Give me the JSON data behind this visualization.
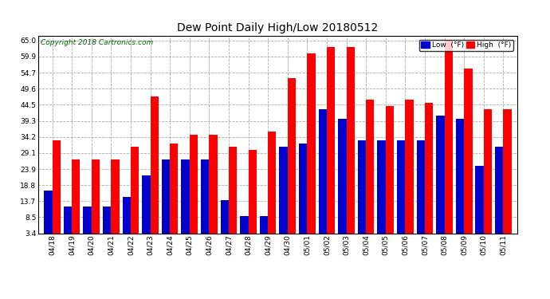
{
  "title": "Dew Point Daily High/Low 20180512",
  "copyright": "Copyright 2018 Cartronics.com",
  "yticks": [
    3.4,
    8.5,
    13.7,
    18.8,
    23.9,
    29.1,
    34.2,
    39.3,
    44.5,
    49.6,
    54.7,
    59.9,
    65.0
  ],
  "dates": [
    "04/18",
    "04/19",
    "04/20",
    "04/21",
    "04/22",
    "04/23",
    "04/24",
    "04/25",
    "04/26",
    "04/27",
    "04/28",
    "04/29",
    "04/30",
    "05/01",
    "05/02",
    "05/03",
    "05/04",
    "05/05",
    "05/06",
    "05/07",
    "05/08",
    "05/09",
    "05/10",
    "05/11"
  ],
  "low_values": [
    17.0,
    12.0,
    12.0,
    12.0,
    15.0,
    22.0,
    27.0,
    27.0,
    27.0,
    14.0,
    9.0,
    9.0,
    31.0,
    32.0,
    43.0,
    40.0,
    33.0,
    33.0,
    33.0,
    33.0,
    41.0,
    40.0,
    25.0,
    31.0
  ],
  "high_values": [
    33.0,
    27.0,
    27.0,
    27.0,
    31.0,
    47.0,
    32.0,
    35.0,
    35.0,
    31.0,
    30.0,
    36.0,
    53.0,
    61.0,
    63.0,
    63.0,
    46.0,
    44.0,
    46.0,
    45.0,
    65.0,
    56.0,
    43.0,
    43.0
  ],
  "low_color": "#0000cc",
  "high_color": "#ff0000",
  "bg_color": "#ffffff",
  "bar_width": 0.42,
  "ylim_min": 3.4,
  "ylim_max": 66.5,
  "figwidth": 6.9,
  "figheight": 3.75,
  "dpi": 100
}
